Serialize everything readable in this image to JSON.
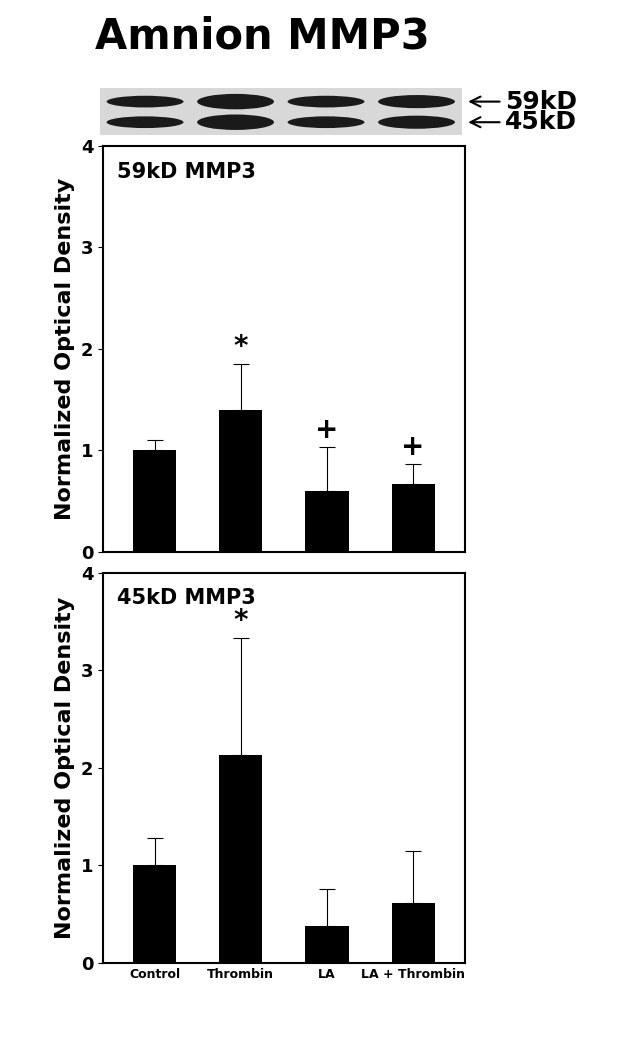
{
  "title": "Amnion MMP3",
  "blot_labels": [
    "59kD",
    "45kD"
  ],
  "chart_data": [
    {
      "type": "bar",
      "title": "59kD MMP3",
      "categories": [
        "Control",
        "Thrombin",
        "LA",
        "LA + Thrombin"
      ],
      "values": [
        1.0,
        1.4,
        0.6,
        0.67
      ],
      "error": [
        0.1,
        0.45,
        0.43,
        0.19
      ],
      "color": "#000000",
      "y_label": "Normalized Optical Density",
      "ylim": [
        0,
        4
      ],
      "yticks": [
        0,
        1,
        2,
        3,
        4
      ],
      "tick_labels": "y",
      "annotations": [
        {
          "category": "Thrombin",
          "text": "*"
        },
        {
          "category": "LA",
          "text": "+"
        },
        {
          "category": "LA + Thrombin",
          "text": "+"
        }
      ]
    },
    {
      "type": "bar",
      "title": "45kD MMP3",
      "categories": [
        "Control",
        "Thrombin",
        "LA",
        "LA + Thrombin"
      ],
      "values": [
        1.0,
        2.13,
        0.38,
        0.61
      ],
      "error": [
        0.28,
        1.2,
        0.38,
        0.54
      ],
      "color": "#000000",
      "y_label": "Normalized Optical Density",
      "ylim": [
        0,
        4
      ],
      "yticks": [
        0,
        1,
        2,
        3,
        4
      ],
      "annotations": [
        {
          "category": "Thrombin",
          "text": "*"
        }
      ]
    }
  ]
}
